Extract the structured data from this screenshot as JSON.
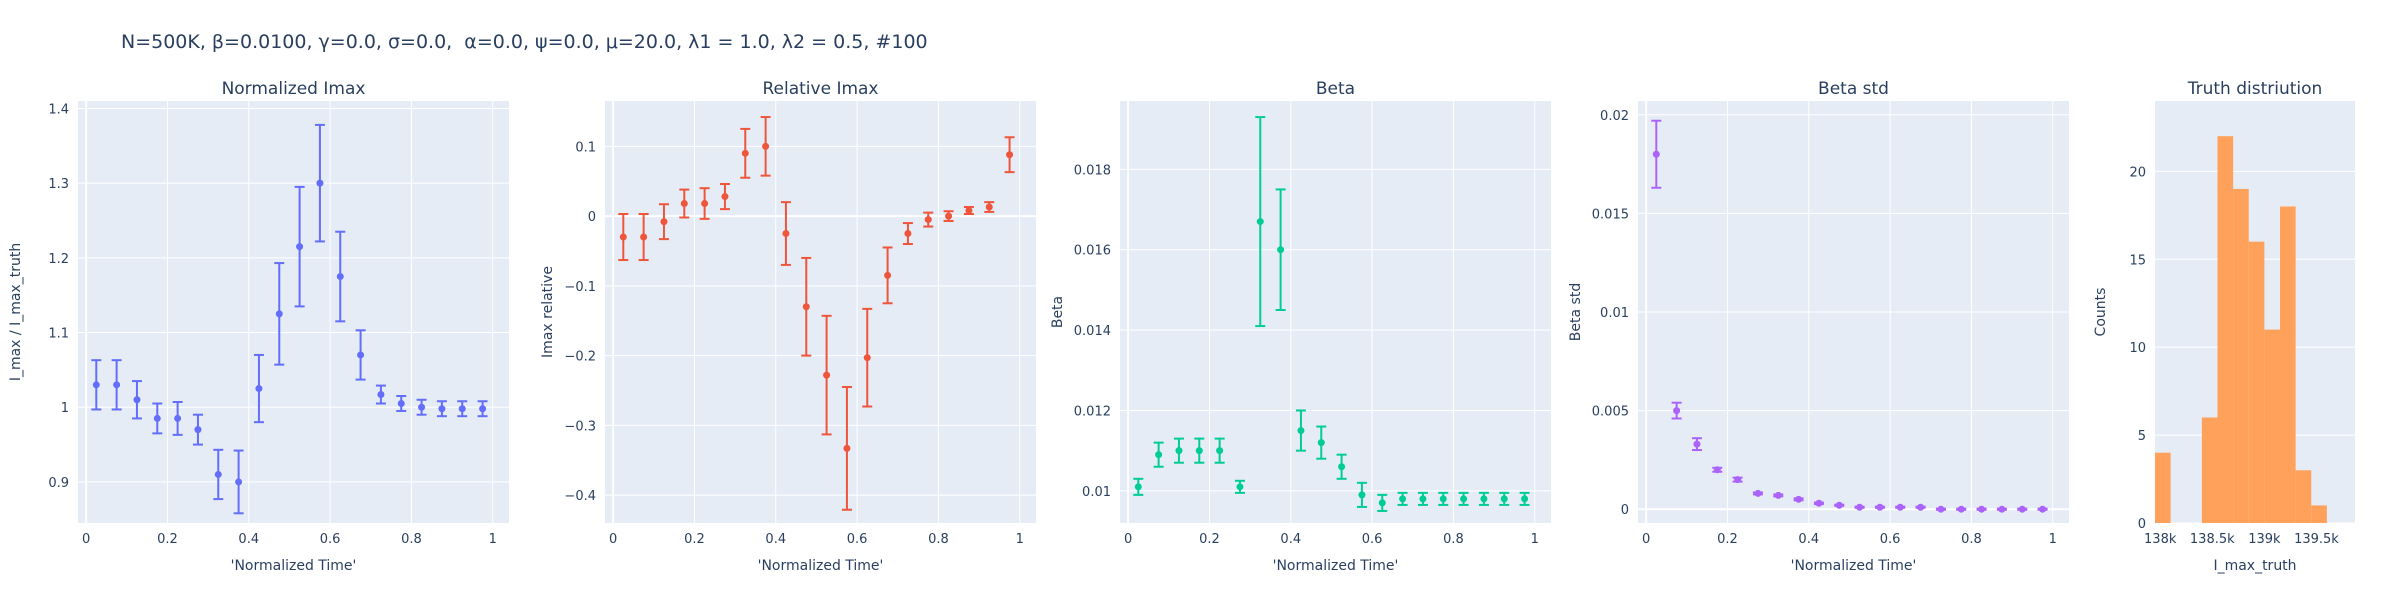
{
  "suptitle": "N=500K, β=0.0100, γ=0.0, σ=0.0,  α=0.0, ψ=0.0, μ=20.0, λ1 = 1.0, λ2 = 0.5, #100",
  "colors": {
    "plot_bg": "#e5ecf6",
    "grid": "#ffffff",
    "text": "#2a3f5f",
    "blue": "#636efa",
    "red": "#ef553b",
    "green": "#00cc96",
    "purple": "#ab63fa",
    "orange": "#ffa15a"
  },
  "chart_data": [
    {
      "type": "scatter",
      "title": "Normalized Imax",
      "xlabel": "'Normalized Time'",
      "ylabel": "I_max / I_max_truth",
      "color": "#636efa",
      "xlim": [
        -0.02,
        1.04
      ],
      "ylim": [
        0.845,
        1.41
      ],
      "xticks": [
        0,
        0.2,
        0.4,
        0.6,
        0.8,
        1
      ],
      "xtick_labels": [
        "0",
        "0.2",
        "0.4",
        "0.6",
        "0.8",
        "1"
      ],
      "yticks": [
        0.9,
        1,
        1.1,
        1.2,
        1.3,
        1.4
      ],
      "ytick_labels": [
        "0.9",
        "1",
        "1.1",
        "1.2",
        "1.3",
        "1.4"
      ],
      "x": [
        0.025,
        0.075,
        0.125,
        0.175,
        0.225,
        0.275,
        0.325,
        0.375,
        0.425,
        0.475,
        0.525,
        0.575,
        0.625,
        0.675,
        0.725,
        0.775,
        0.825,
        0.875,
        0.925,
        0.975
      ],
      "y": [
        1.03,
        1.03,
        1.01,
        0.985,
        0.985,
        0.97,
        0.91,
        0.9,
        1.025,
        1.125,
        1.215,
        1.3,
        1.175,
        1.07,
        1.017,
        1.005,
        1.0,
        0.998,
        0.998,
        0.998
      ],
      "err": [
        0.033,
        0.033,
        0.025,
        0.02,
        0.022,
        0.02,
        0.033,
        0.042,
        0.045,
        0.068,
        0.08,
        0.078,
        0.06,
        0.033,
        0.012,
        0.01,
        0.01,
        0.01,
        0.01,
        0.01
      ]
    },
    {
      "type": "scatter",
      "title": "Relative Imax",
      "xlabel": "'Normalized Time'",
      "ylabel": "Imax relative",
      "color": "#ef553b",
      "xlim": [
        -0.02,
        1.04
      ],
      "ylim": [
        -0.44,
        0.165
      ],
      "xticks": [
        0,
        0.2,
        0.4,
        0.6,
        0.8,
        1
      ],
      "xtick_labels": [
        "0",
        "0.2",
        "0.4",
        "0.6",
        "0.8",
        "1"
      ],
      "yticks": [
        -0.4,
        -0.3,
        -0.2,
        -0.1,
        0,
        0.1
      ],
      "ytick_labels": [
        "−0.4",
        "−0.3",
        "−0.2",
        "−0.1",
        "0",
        "0.1"
      ],
      "x": [
        0.025,
        0.075,
        0.125,
        0.175,
        0.225,
        0.275,
        0.325,
        0.375,
        0.425,
        0.475,
        0.525,
        0.575,
        0.625,
        0.675,
        0.725,
        0.775,
        0.825,
        0.875,
        0.925,
        0.975
      ],
      "y": [
        -0.03,
        -0.03,
        -0.008,
        0.018,
        0.018,
        0.028,
        0.09,
        0.1,
        -0.025,
        -0.13,
        -0.228,
        -0.333,
        -0.203,
        -0.085,
        -0.025,
        -0.005,
        0.0,
        0.008,
        0.013,
        0.088
      ],
      "err": [
        0.033,
        0.033,
        0.025,
        0.02,
        0.022,
        0.018,
        0.035,
        0.042,
        0.045,
        0.07,
        0.085,
        0.088,
        0.07,
        0.04,
        0.015,
        0.01,
        0.007,
        0.005,
        0.007,
        0.025
      ]
    },
    {
      "type": "scatter",
      "title": "Beta",
      "xlabel": "'Normalized Time'",
      "ylabel": "Beta",
      "color": "#00cc96",
      "xlim": [
        -0.02,
        1.04
      ],
      "ylim": [
        0.0092,
        0.0197
      ],
      "xticks": [
        0,
        0.2,
        0.4,
        0.6,
        0.8,
        1
      ],
      "xtick_labels": [
        "0",
        "0.2",
        "0.4",
        "0.6",
        "0.8",
        "1"
      ],
      "yticks": [
        0.01,
        0.012,
        0.014,
        0.016,
        0.018
      ],
      "ytick_labels": [
        "0.01",
        "0.012",
        "0.014",
        "0.016",
        "0.018"
      ],
      "x": [
        0.025,
        0.075,
        0.125,
        0.175,
        0.225,
        0.275,
        0.325,
        0.375,
        0.425,
        0.475,
        0.525,
        0.575,
        0.625,
        0.675,
        0.725,
        0.775,
        0.825,
        0.875,
        0.925,
        0.975
      ],
      "y": [
        0.0101,
        0.0109,
        0.011,
        0.011,
        0.011,
        0.0101,
        0.0167,
        0.016,
        0.0115,
        0.0112,
        0.0106,
        0.0099,
        0.0097,
        0.0098,
        0.0098,
        0.0098,
        0.0098,
        0.0098,
        0.0098,
        0.0098
      ],
      "err": [
        0.0002,
        0.0003,
        0.0003,
        0.0003,
        0.0003,
        0.00015,
        0.0026,
        0.0015,
        0.0005,
        0.0004,
        0.0003,
        0.0003,
        0.0002,
        0.00015,
        0.00015,
        0.00015,
        0.00015,
        0.00015,
        0.00015,
        0.00015
      ]
    },
    {
      "type": "scatter",
      "title": "Beta std",
      "xlabel": "'Normalized Time'",
      "ylabel": "Beta std",
      "color": "#ab63fa",
      "xlim": [
        -0.02,
        1.04
      ],
      "ylim": [
        -0.0007,
        0.0207
      ],
      "xticks": [
        0,
        0.2,
        0.4,
        0.6,
        0.8,
        1
      ],
      "xtick_labels": [
        "0",
        "0.2",
        "0.4",
        "0.6",
        "0.8",
        "1"
      ],
      "yticks": [
        0,
        0.005,
        0.01,
        0.015,
        0.02
      ],
      "ytick_labels": [
        "0",
        "0.005",
        "0.01",
        "0.015",
        "0.02"
      ],
      "x": [
        0.025,
        0.075,
        0.125,
        0.175,
        0.225,
        0.275,
        0.325,
        0.375,
        0.425,
        0.475,
        0.525,
        0.575,
        0.625,
        0.675,
        0.725,
        0.775,
        0.825,
        0.875,
        0.925,
        0.975
      ],
      "y": [
        0.018,
        0.005,
        0.0033,
        0.002,
        0.0015,
        0.0008,
        0.0007,
        0.0005,
        0.0003,
        0.0002,
        0.0001,
        0.0001,
        0.0001,
        0.0001,
        0.0,
        0.0,
        0.0,
        0.0,
        0.0,
        0.0
      ],
      "err": [
        0.0017,
        0.0004,
        0.0003,
        0.0001,
        0.0001,
        5e-05,
        5e-05,
        5e-05,
        4e-05,
        3e-05,
        3e-05,
        3e-05,
        3e-05,
        3e-05,
        3e-05,
        3e-05,
        3e-05,
        3e-05,
        3e-05,
        3e-05
      ]
    },
    {
      "type": "bar",
      "subtype": "histogram",
      "title": "Truth distriution",
      "xlabel": "I_max_truth",
      "ylabel": "Counts",
      "color": "#ffa15a",
      "xlim": [
        137950,
        139870
      ],
      "ylim": [
        0,
        24
      ],
      "xticks": [
        138000,
        138500,
        139000,
        139500
      ],
      "xtick_labels": [
        "138k",
        "138.5k",
        "139k",
        "139.5k"
      ],
      "yticks": [
        0,
        5,
        10,
        15,
        20
      ],
      "ytick_labels": [
        "0",
        "5",
        "10",
        "15",
        "20"
      ],
      "bin_size": 150,
      "bin_starts": [
        137950,
        138100,
        138250,
        138400,
        138550,
        138700,
        138850,
        139000,
        139150,
        139300,
        139450,
        139600,
        139750
      ],
      "values": [
        4,
        0,
        0,
        6,
        22,
        19,
        16,
        11,
        18,
        3,
        1,
        0,
        0
      ]
    }
  ]
}
